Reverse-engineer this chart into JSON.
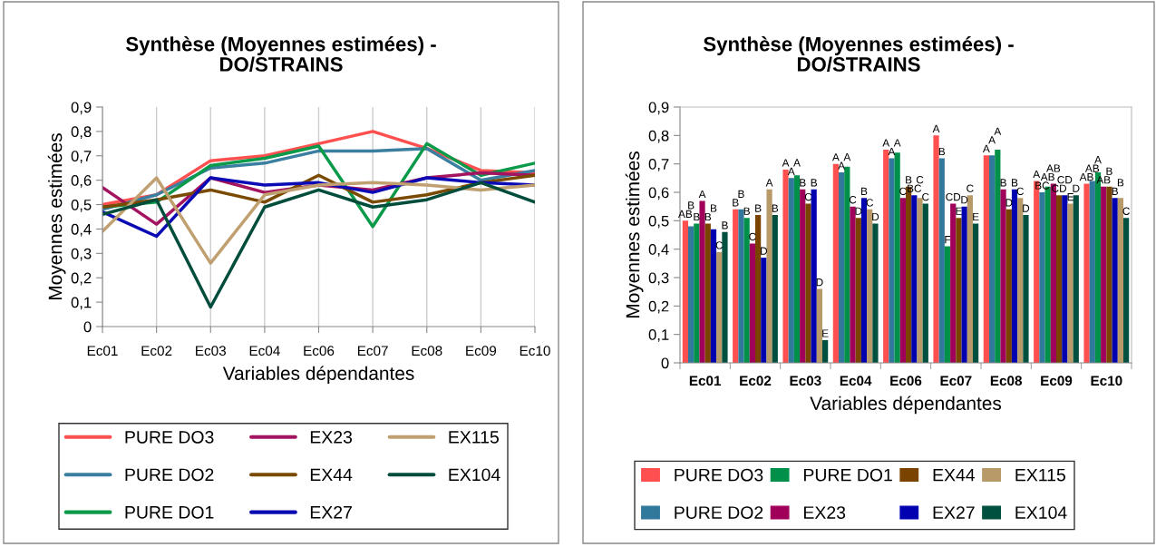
{
  "chart_data": [
    {
      "type": "line",
      "title": "Synthèse (Moyennes estimées) -\nDO/STRAINS",
      "xlabel": "Variables dépendantes",
      "ylabel": "Moyennes estimées",
      "categories": [
        "Ec01",
        "Ec02",
        "Ec03",
        "Ec04",
        "Ec06",
        "Ec07",
        "Ec08",
        "Ec09",
        "Ec10"
      ],
      "ylim": [
        0,
        0.9
      ],
      "yticks": [
        0,
        {
          "value": 0.1,
          "label": "0,1"
        },
        {
          "value": 0.2,
          "label": "0,2"
        },
        {
          "value": 0.3,
          "label": "0,3"
        },
        {
          "value": 0.4,
          "label": "0,4"
        },
        {
          "value": 0.5,
          "label": "0,5"
        },
        {
          "value": 0.6,
          "label": "0,6"
        },
        {
          "value": 0.7,
          "label": "0,7"
        },
        {
          "value": 0.8,
          "label": "0,8"
        },
        {
          "value": 0.9,
          "label": "0,9"
        }
      ],
      "grid": "x",
      "legend": "bottom",
      "marker": "none",
      "line_style": "solid",
      "series": [
        {
          "name": "PURE DO3",
          "color": "#ff5050",
          "values": [
            0.5,
            0.54,
            0.68,
            0.7,
            0.75,
            0.8,
            0.73,
            0.64,
            0.63
          ]
        },
        {
          "name": "PURE DO2",
          "color": "#3a7ea0",
          "values": [
            0.48,
            0.54,
            0.65,
            0.67,
            0.72,
            0.72,
            0.73,
            0.6,
            0.64
          ]
        },
        {
          "name": "PURE DO1",
          "color": "#0a9a4a",
          "values": [
            0.49,
            0.51,
            0.66,
            0.69,
            0.74,
            0.41,
            0.75,
            0.62,
            0.67
          ]
        },
        {
          "name": "EX23",
          "color": "#a3135f",
          "values": [
            0.57,
            0.42,
            0.61,
            0.55,
            0.58,
            0.56,
            0.61,
            0.63,
            0.62
          ]
        },
        {
          "name": "EX44",
          "color": "#7a4a00",
          "values": [
            0.49,
            0.52,
            0.56,
            0.51,
            0.62,
            0.51,
            0.54,
            0.59,
            0.62
          ]
        },
        {
          "name": "EX27",
          "color": "#0b0bb5",
          "values": [
            0.47,
            0.37,
            0.61,
            0.58,
            0.59,
            0.55,
            0.61,
            0.59,
            0.58
          ]
        },
        {
          "name": "EX115",
          "color": "#c0a070",
          "values": [
            0.39,
            0.61,
            0.26,
            0.54,
            0.58,
            0.59,
            0.58,
            0.56,
            0.58
          ]
        },
        {
          "name": "EX104",
          "color": "#004d3c",
          "values": [
            0.46,
            0.52,
            0.08,
            0.49,
            0.56,
            0.49,
            0.52,
            0.59,
            0.51
          ]
        }
      ]
    },
    {
      "type": "bar",
      "title": "Synthèse (Moyennes estimées) -\nDO/STRAINS",
      "xlabel": "Variables dépendantes",
      "ylabel": "Moyennes estimées",
      "categories": [
        "Ec01",
        "Ec02",
        "Ec03",
        "Ec04",
        "Ec06",
        "Ec07",
        "Ec08",
        "Ec09",
        "Ec10"
      ],
      "ylim": [
        0,
        0.9
      ],
      "yticks": [
        0,
        {
          "value": 0.1,
          "label": "0,1"
        },
        {
          "value": 0.2,
          "label": "0,2"
        },
        {
          "value": 0.3,
          "label": "0,3"
        },
        {
          "value": 0.4,
          "label": "0,4"
        },
        {
          "value": 0.5,
          "label": "0,5"
        },
        {
          "value": 0.6,
          "label": "0,6"
        },
        {
          "value": 0.7,
          "label": "0,7"
        },
        {
          "value": 0.8,
          "label": "0,8"
        },
        {
          "value": 0.9,
          "label": "0,9"
        }
      ],
      "legend": "bottom",
      "series": [
        {
          "name": "PURE DO3",
          "color": "#ff4f4f",
          "values": [
            0.5,
            0.54,
            0.68,
            0.7,
            0.75,
            0.8,
            0.73,
            0.64,
            0.63
          ],
          "value_labels": [
            "AB",
            "B",
            "A",
            "A",
            "A",
            "A",
            "A",
            "A",
            "AB"
          ]
        },
        {
          "name": "PURE DO2",
          "color": "#31799c",
          "values": [
            0.48,
            0.54,
            0.65,
            0.67,
            0.72,
            0.72,
            0.73,
            0.6,
            0.64
          ],
          "value_labels": [
            "B",
            "B",
            "A",
            "A",
            "A",
            "B",
            "A",
            "BC",
            "AB"
          ]
        },
        {
          "name": "PURE DO1",
          "color": "#00904a",
          "values": [
            0.49,
            0.51,
            0.66,
            0.69,
            0.74,
            0.41,
            0.75,
            0.62,
            0.67
          ],
          "value_labels": [
            "B",
            "B",
            "A",
            "A",
            "A",
            "F",
            "A",
            "AB",
            "A"
          ]
        },
        {
          "name": "EX23",
          "color": "#a0005a",
          "values": [
            0.57,
            0.42,
            0.61,
            0.55,
            0.58,
            0.56,
            0.61,
            0.63,
            0.62
          ],
          "value_labels": [
            "A",
            "C",
            "B",
            "C",
            "C",
            "CD",
            "B",
            "AB",
            "AB"
          ]
        },
        {
          "name": "EX44",
          "color": "#7a4400",
          "values": [
            0.49,
            0.52,
            0.56,
            0.51,
            0.62,
            0.51,
            0.54,
            0.59,
            0.62
          ],
          "value_labels": [
            "B",
            "B",
            "C",
            "D",
            "B",
            "E",
            "D",
            "CD",
            "B"
          ]
        },
        {
          "name": "EX27",
          "color": "#0000b0",
          "values": [
            0.47,
            0.37,
            0.61,
            0.58,
            0.59,
            0.55,
            0.61,
            0.59,
            0.58
          ],
          "value_labels": [
            "B",
            "D",
            "B",
            "B",
            "BC",
            "D",
            "B",
            "CD",
            "B"
          ]
        },
        {
          "name": "EX115",
          "color": "#b89a68",
          "values": [
            0.39,
            0.61,
            0.26,
            0.54,
            0.58,
            0.59,
            0.58,
            0.56,
            0.58
          ],
          "value_labels": [
            "C",
            "A",
            "D",
            "C",
            "C",
            "C",
            "C",
            "E",
            "B"
          ]
        },
        {
          "name": "EX104",
          "color": "#00503f",
          "values": [
            0.46,
            0.52,
            0.08,
            0.49,
            0.56,
            0.49,
            0.52,
            0.59,
            0.51
          ],
          "value_labels": [
            "B",
            "B",
            "E",
            "D",
            "C",
            "E",
            "D",
            "D",
            "C"
          ]
        }
      ]
    }
  ]
}
